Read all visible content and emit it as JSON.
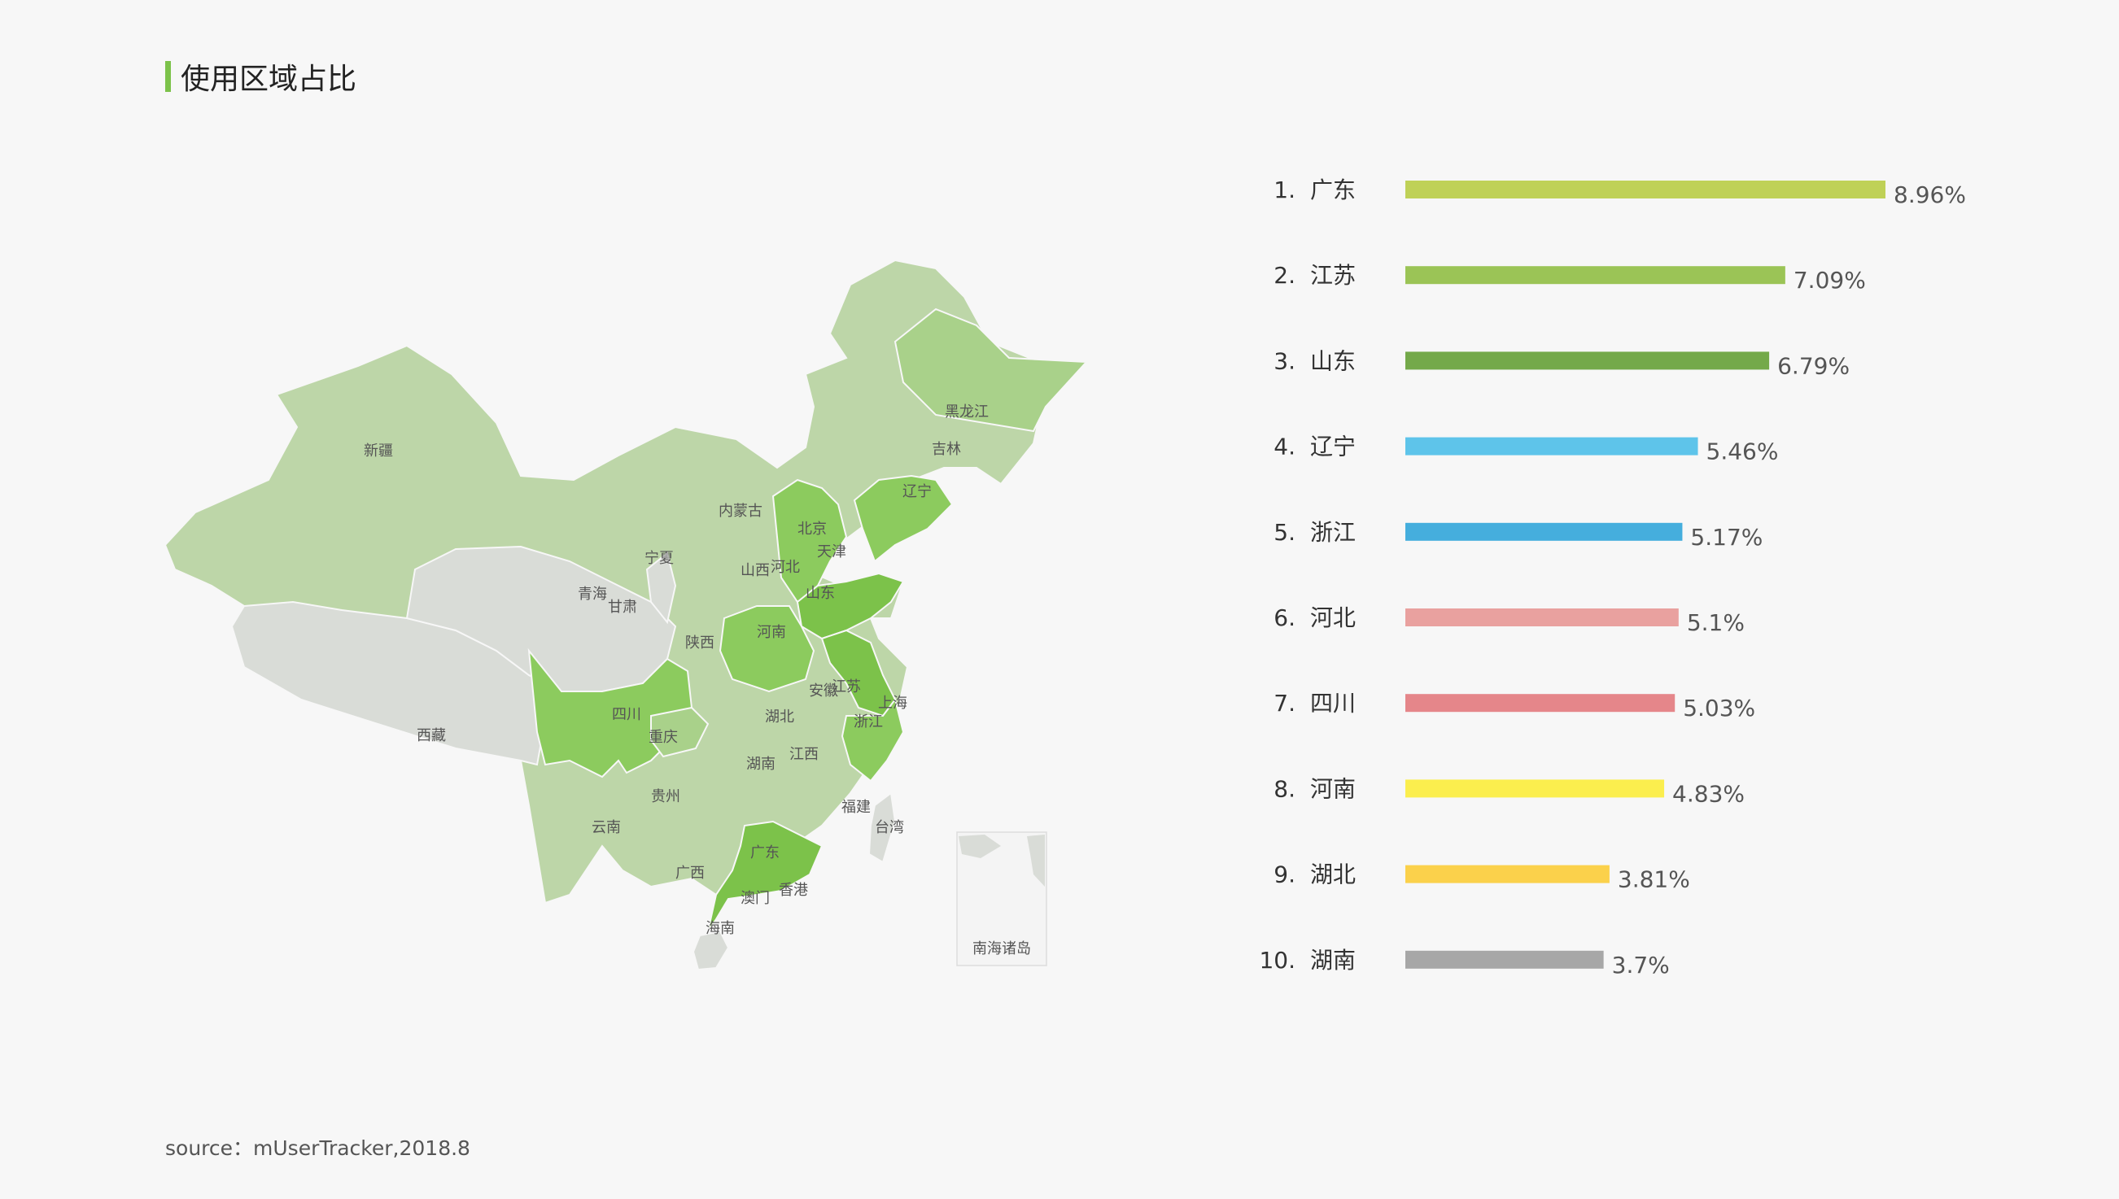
{
  "title": "使用区域占比",
  "source": "source：mUserTracker,2018.8",
  "map": {
    "inset_label": "南海诸岛",
    "provinces": [
      {
        "name": "新疆",
        "level": 1
      },
      {
        "name": "西藏",
        "level": 0
      },
      {
        "name": "青海",
        "level": 0
      },
      {
        "name": "甘肃",
        "level": 1
      },
      {
        "name": "内蒙古",
        "level": 1
      },
      {
        "name": "宁夏",
        "level": 0
      },
      {
        "name": "黑龙江",
        "level": 2
      },
      {
        "name": "吉林",
        "level": 2
      },
      {
        "name": "辽宁",
        "level": 4
      },
      {
        "name": "北京",
        "level": 2
      },
      {
        "name": "天津",
        "level": 2
      },
      {
        "name": "河北",
        "level": 4
      },
      {
        "name": "山西",
        "level": 2
      },
      {
        "name": "山东",
        "level": 5
      },
      {
        "name": "河南",
        "level": 4
      },
      {
        "name": "陕西",
        "level": 2
      },
      {
        "name": "江苏",
        "level": 5
      },
      {
        "name": "安徽",
        "level": 3
      },
      {
        "name": "上海",
        "level": 4
      },
      {
        "name": "浙江",
        "level": 4
      },
      {
        "name": "湖北",
        "level": 3
      },
      {
        "name": "四川",
        "level": 4
      },
      {
        "name": "重庆",
        "level": 2
      },
      {
        "name": "湖南",
        "level": 3
      },
      {
        "name": "江西",
        "level": 2
      },
      {
        "name": "贵州",
        "level": 1
      },
      {
        "name": "云南",
        "level": 1
      },
      {
        "name": "福建",
        "level": 2
      },
      {
        "name": "台湾",
        "level": 0
      },
      {
        "name": "广西",
        "level": 1
      },
      {
        "name": "广东",
        "level": 5
      },
      {
        "name": "香港",
        "level": 0
      },
      {
        "name": "澳门",
        "level": 0
      },
      {
        "name": "海南",
        "level": 0
      }
    ],
    "level_colors": [
      "#d9dcd7",
      "#bdd6a8",
      "#a9d18a",
      "#9ccb78",
      "#8ccb5e",
      "#7cc24a"
    ]
  },
  "chart_data": {
    "type": "bar",
    "orientation": "horizontal",
    "categories": [
      "广东",
      "江苏",
      "山东",
      "辽宁",
      "浙江",
      "河北",
      "四川",
      "河南",
      "湖北",
      "湖南"
    ],
    "rank_labels": [
      "1.",
      "2.",
      "3.",
      "4.",
      "5.",
      "6.",
      "7.",
      "8.",
      "9.",
      "10."
    ],
    "values": [
      8.96,
      7.09,
      6.79,
      5.46,
      5.17,
      5.1,
      5.03,
      4.83,
      3.81,
      3.7
    ],
    "value_labels": [
      "8.96%",
      "7.09%",
      "6.79%",
      "5.46%",
      "5.17%",
      "5.1%",
      "5.03%",
      "4.83%",
      "3.81%",
      "3.7%"
    ],
    "colors": [
      "#bfd157",
      "#9bc456",
      "#74a94a",
      "#5ec4ea",
      "#45aedd",
      "#e9a19f",
      "#e5868a",
      "#fbee4e",
      "#fbd14b",
      "#a7a7a7"
    ],
    "unit": "%",
    "xlim": [
      0,
      8.96
    ]
  }
}
